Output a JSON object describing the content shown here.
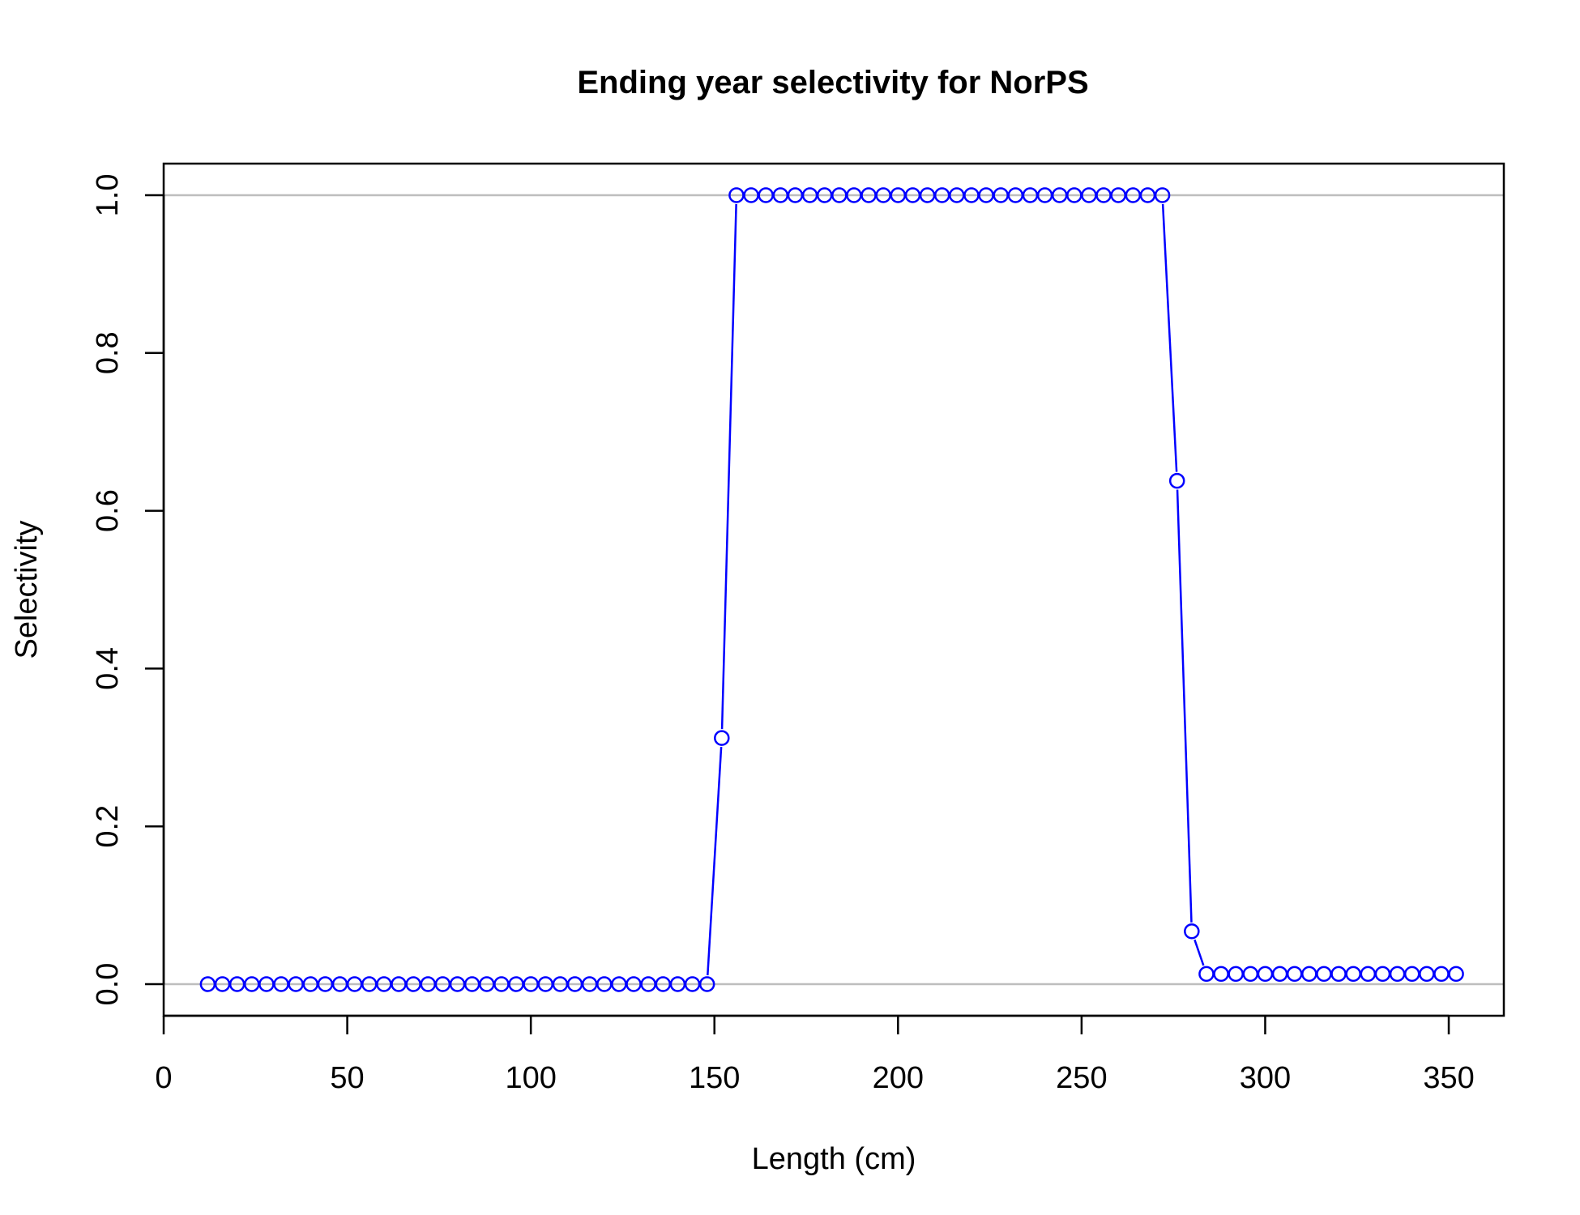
{
  "chart_data": {
    "type": "line",
    "title": "Ending year selectivity for NorPS",
    "xlabel": "Length (cm)",
    "ylabel": "Selectivity",
    "xlim": [
      0,
      365
    ],
    "ylim": [
      -0.04,
      1.04
    ],
    "xticks": [
      0,
      50,
      100,
      150,
      200,
      250,
      300,
      350
    ],
    "xtick_labels": [
      "0",
      "50",
      "100",
      "150",
      "200",
      "250",
      "300",
      "350"
    ],
    "yticks": [
      0.0,
      0.2,
      0.4,
      0.6,
      0.8,
      1.0
    ],
    "ytick_labels": [
      "0.0",
      "0.2",
      "0.4",
      "0.6",
      "0.8",
      "1.0"
    ],
    "reference_lines": [
      0,
      1
    ],
    "grid": false,
    "colors": {
      "series": "#0000ff",
      "reference": "#bebebe",
      "axis": "#000000"
    },
    "series": [
      {
        "marker": "open-circle",
        "x": [
          12,
          16,
          20,
          24,
          28,
          32,
          36,
          40,
          44,
          48,
          52,
          56,
          60,
          64,
          68,
          72,
          76,
          80,
          84,
          88,
          92,
          96,
          100,
          104,
          108,
          112,
          116,
          120,
          124,
          128,
          132,
          136,
          140,
          144,
          148,
          152,
          156,
          160,
          164,
          168,
          172,
          176,
          180,
          184,
          188,
          192,
          196,
          200,
          204,
          208,
          212,
          216,
          220,
          224,
          228,
          232,
          236,
          240,
          244,
          248,
          252,
          256,
          260,
          264,
          268,
          272,
          276,
          280,
          284,
          288,
          292,
          296,
          300,
          304,
          308,
          312,
          316,
          320,
          324,
          328,
          332,
          336,
          340,
          344,
          348,
          352
        ],
        "y": [
          0,
          0,
          0,
          0,
          0,
          0,
          0,
          0,
          0,
          0,
          0,
          0,
          0,
          0,
          0,
          0,
          0,
          0,
          0,
          0,
          0,
          0,
          0,
          0,
          0,
          0,
          0,
          0,
          0,
          0,
          0,
          0,
          0,
          0,
          0,
          0.312,
          1,
          1,
          1,
          1,
          1,
          1,
          1,
          1,
          1,
          1,
          1,
          1,
          1,
          1,
          1,
          1,
          1,
          1,
          1,
          1,
          1,
          1,
          1,
          1,
          1,
          1,
          1,
          1,
          1,
          1,
          0.638,
          0.067,
          0.013,
          0.013,
          0.013,
          0.013,
          0.013,
          0.013,
          0.013,
          0.013,
          0.013,
          0.013,
          0.013,
          0.013,
          0.013,
          0.013,
          0.013,
          0.013,
          0.013,
          0.013
        ]
      }
    ]
  }
}
